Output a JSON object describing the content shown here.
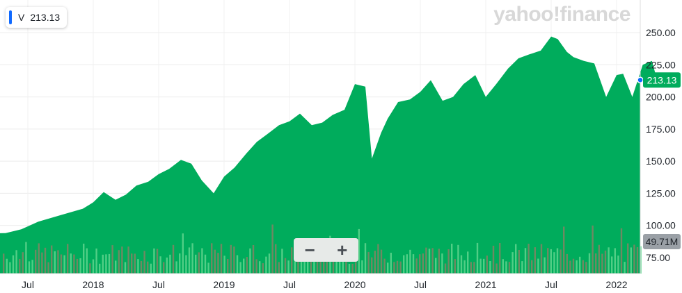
{
  "legend": {
    "symbol": "V",
    "value": "213.13",
    "color": "#0f69ff"
  },
  "logo_text": "yahoo!finance",
  "zoom": {
    "minus": "−",
    "plus": "+"
  },
  "colors": {
    "area": "#00ac5c",
    "volume_up": "#5fd38d",
    "volume_down": "#9e7b65",
    "price_tag": "#00ac5c",
    "volume_tag": "#9aa0a6"
  },
  "chart_data": {
    "type": "area",
    "x_labels": [
      "Jul",
      "2018",
      "Jul",
      "2019",
      "Jul",
      "2020",
      "Jul",
      "2021",
      "Jul",
      "2022"
    ],
    "y_ticks": [
      "250.00",
      "225.00",
      "200.00",
      "175.00",
      "150.00",
      "125.00",
      "100.00",
      "75.00"
    ],
    "ylim": [
      69,
      256
    ],
    "current_price": "213.13",
    "volume_label": "49.71M",
    "series": [
      {
        "x": [
          2017.33,
          2017.45,
          2017.58,
          2017.75,
          2017.92,
          2018.0,
          2018.08,
          2018.17,
          2018.25,
          2018.33,
          2018.42,
          2018.5,
          2018.58,
          2018.67,
          2018.75,
          2018.83,
          2018.92,
          2019.0,
          2019.08,
          2019.17,
          2019.25,
          2019.33,
          2019.42,
          2019.5,
          2019.58,
          2019.67,
          2019.75,
          2019.83,
          2019.92,
          2020.0,
          2020.08,
          2020.13,
          2020.2,
          2020.25,
          2020.33,
          2020.42,
          2020.5,
          2020.58,
          2020.67,
          2020.75,
          2020.83,
          2020.92,
          2021.0,
          2021.08,
          2021.17,
          2021.25,
          2021.33,
          2021.42,
          2021.5,
          2021.55,
          2021.62,
          2021.67,
          2021.75,
          2021.83,
          2021.92,
          2022.0,
          2022.05,
          2022.12,
          2022.2,
          2022.27,
          2022.31
        ],
        "values": [
          94,
          97,
          103,
          108,
          113,
          118,
          126,
          120,
          124,
          131,
          134,
          140,
          144,
          151,
          148,
          135,
          125,
          138,
          145,
          156,
          165,
          171,
          178,
          181,
          187,
          178,
          180,
          186,
          190,
          210,
          208,
          152,
          172,
          183,
          196,
          198,
          204,
          213,
          197,
          200,
          210,
          217,
          200,
          210,
          222,
          230,
          233,
          236,
          247,
          245,
          235,
          231,
          228,
          226,
          200,
          217,
          218,
          200,
          225,
          228,
          213
        ]
      }
    ]
  }
}
